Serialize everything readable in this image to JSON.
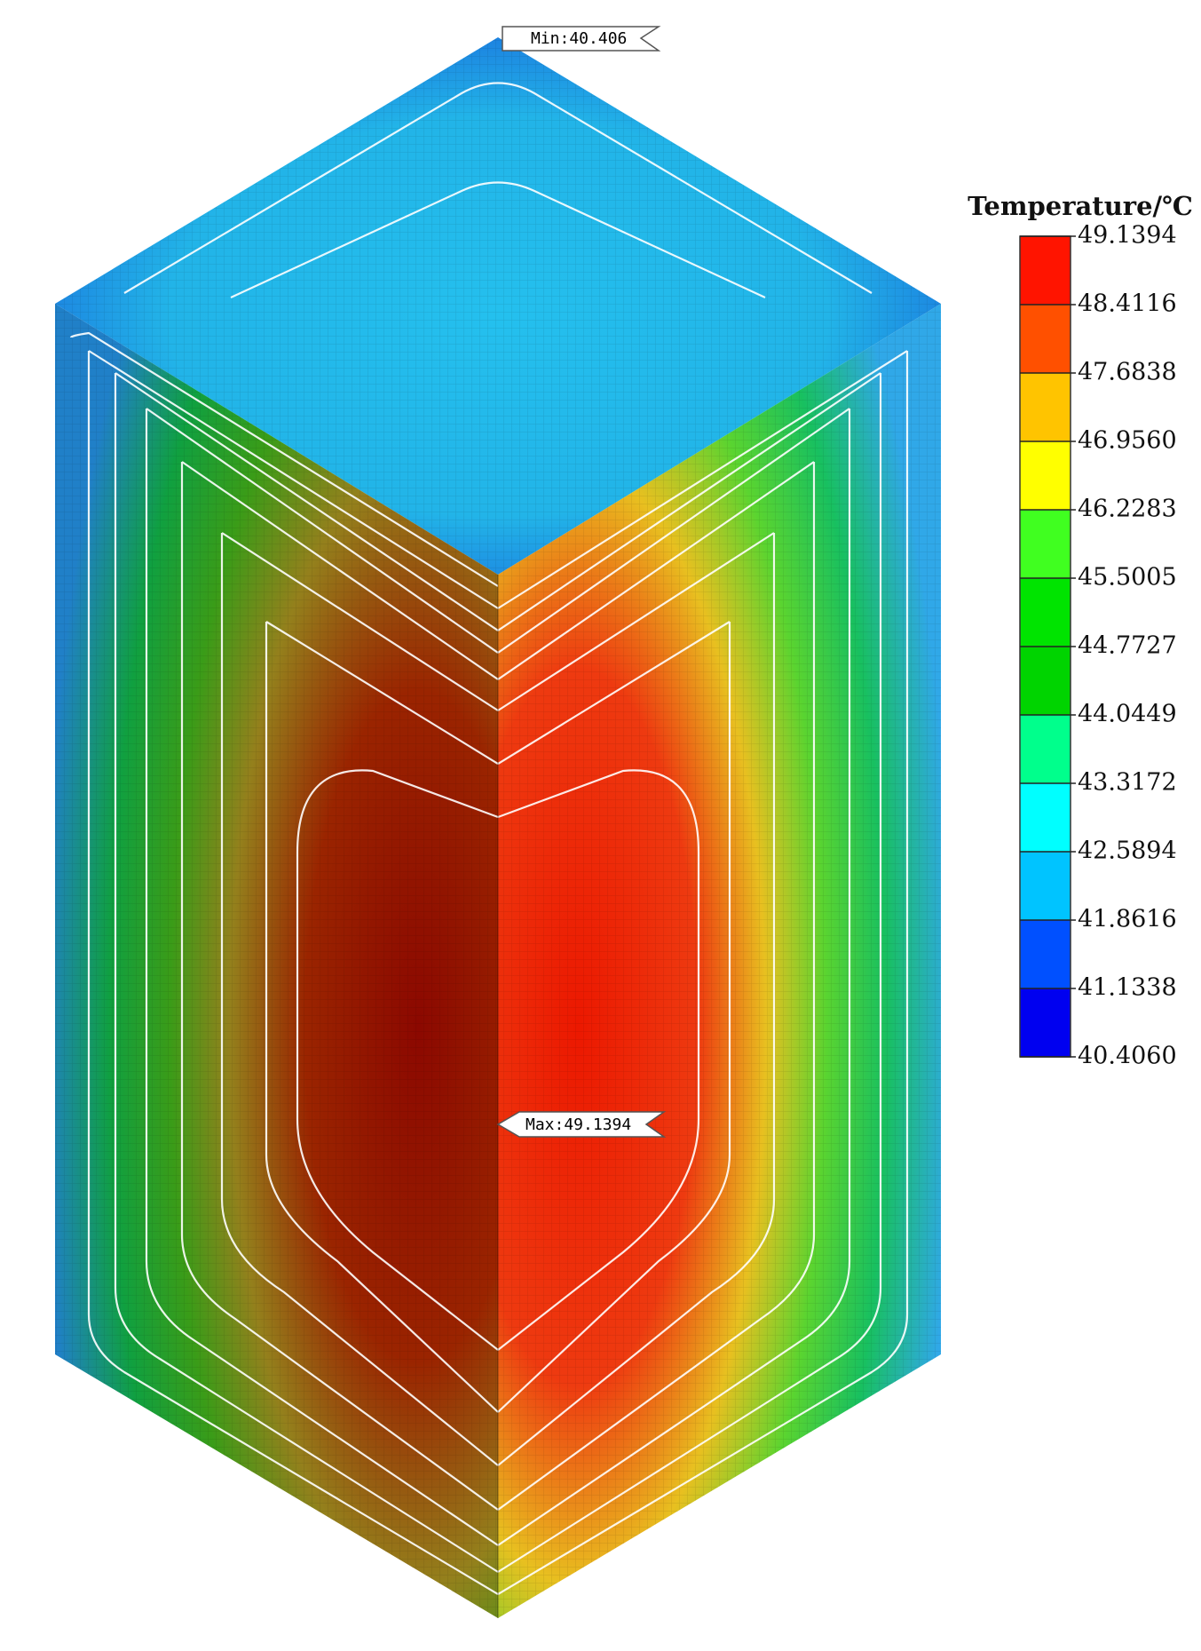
{
  "legend_title": "Temperature/℃",
  "min_label": "Min:40.406",
  "max_label": "Max:49.1394",
  "colorbar": {
    "ticks": [
      49.1394,
      48.4116,
      47.6838,
      {
        "value": 46.956,
        "label": "46.9560"
      },
      46.2283,
      45.5005,
      44.7727,
      44.0449,
      43.3172,
      42.5894,
      41.8616,
      41.1338,
      {
        "value": 40.406,
        "label": "40.4060"
      }
    ],
    "colors": [
      "#ff1400",
      "#ff5000",
      "#ffc400",
      "#ffff00",
      "#40ff20",
      "#00e400",
      "#00d400",
      "#00ff8c",
      "#00ffff",
      "#00c4ff",
      "#0050ff",
      "#0000f0"
    ]
  }
}
